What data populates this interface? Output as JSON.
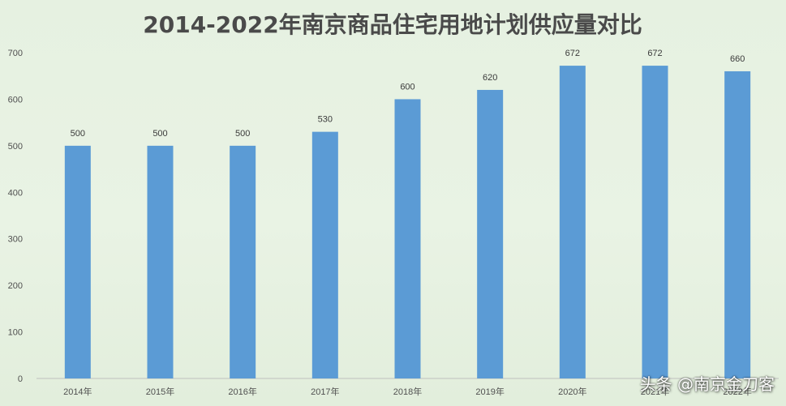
{
  "colors": {
    "bar": "#5b9bd5",
    "gridline": "#d4dcd0",
    "axis": "#bfbfbf",
    "title": "#4a4a4a",
    "text": "#505050"
  },
  "watermark": "头条 @南京金刀客",
  "chart_data": {
    "type": "bar",
    "title": "2014-2022年南京商品住宅用地计划供应量对比",
    "xlabel": "",
    "ylabel": "",
    "categories": [
      "2014年",
      "2015年",
      "2016年",
      "2017年",
      "2018年",
      "2019年",
      "2020年",
      "2021年",
      "2022年"
    ],
    "values": [
      500,
      500,
      500,
      530,
      600,
      620,
      672,
      672,
      660
    ],
    "ylim": [
      0,
      700
    ],
    "yticks": [
      0,
      100,
      200,
      300,
      400,
      500,
      600,
      700
    ],
    "grid": false,
    "legend": "none",
    "data_labels": true
  }
}
